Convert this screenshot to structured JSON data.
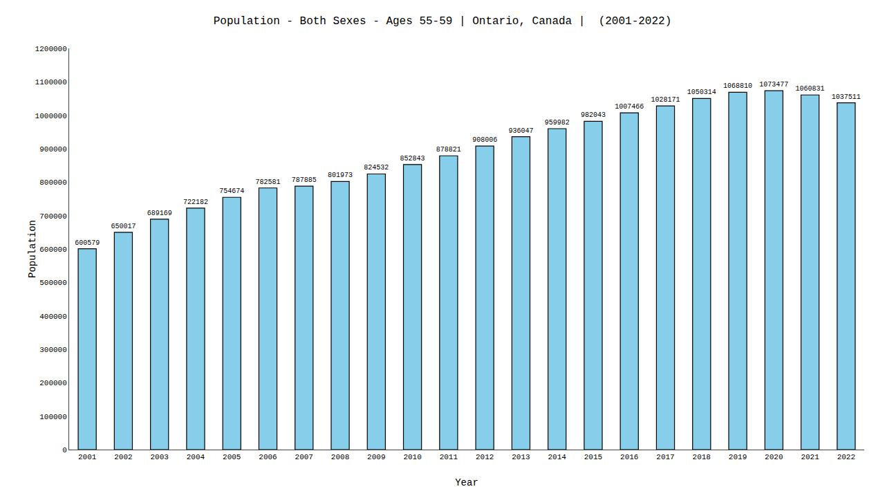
{
  "chart_data": {
    "type": "bar",
    "title": "Population - Both Sexes - Ages 55-59 | Ontario, Canada |  (2001-2022)",
    "x_label": "Year",
    "y_label": "Population",
    "categories": [
      "2001",
      "2002",
      "2003",
      "2004",
      "2005",
      "2006",
      "2007",
      "2008",
      "2009",
      "2010",
      "2011",
      "2012",
      "2013",
      "2014",
      "2015",
      "2016",
      "2017",
      "2018",
      "2019",
      "2020",
      "2021",
      "2022"
    ],
    "values": [
      600579,
      650017,
      689169,
      722182,
      754674,
      782581,
      787885,
      801973,
      824532,
      852843,
      878821,
      908006,
      936047,
      959982,
      982043,
      1007466,
      1028171,
      1050314,
      1068810,
      1073477,
      1060831,
      1037511
    ],
    "color": "#87CEEB",
    "ylim": [
      0,
      1200000
    ],
    "yticks": [
      0,
      100000,
      200000,
      300000,
      400000,
      500000,
      600000,
      700000,
      800000,
      900000,
      1000000,
      1100000,
      1200000
    ],
    "data_labels": true,
    "grid": false
  }
}
